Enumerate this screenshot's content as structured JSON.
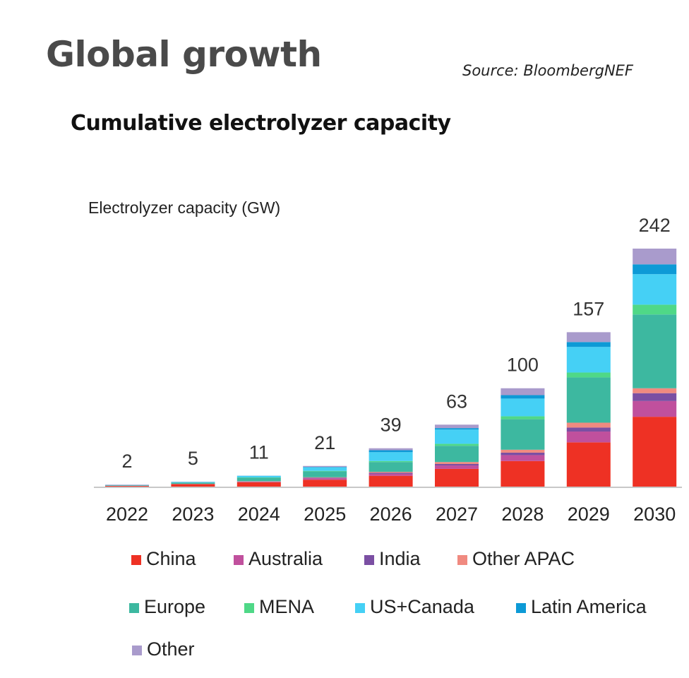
{
  "header": {
    "title": "Global growth",
    "source": "Source: BloombergNEF"
  },
  "chart_data": {
    "type": "bar",
    "stacked": true,
    "title": "Cumulative electrolyzer capacity",
    "ylabel": "Electrolyzer capacity (GW)",
    "xlabel": "",
    "ylim": [
      0,
      242
    ],
    "categories": [
      "2022",
      "2023",
      "2024",
      "2025",
      "2026",
      "2027",
      "2028",
      "2029",
      "2030"
    ],
    "totals": [
      2,
      5,
      11,
      21,
      39,
      63,
      100,
      157,
      242
    ],
    "total_labels": [
      "2",
      "5",
      "11",
      "21",
      "39",
      "63",
      "100",
      "157",
      "242"
    ],
    "series": [
      {
        "name": "China",
        "color": "#ee3124",
        "values": [
          0.8,
          2.5,
          4.5,
          7,
          11,
          18,
          26,
          45,
          71
        ]
      },
      {
        "name": "Australia",
        "color": "#c0509d",
        "values": [
          0,
          0.1,
          0.4,
          1.5,
          2,
          3.5,
          6,
          11,
          16
        ]
      },
      {
        "name": "India",
        "color": "#7b4fa3",
        "values": [
          0,
          0.1,
          0.3,
          0.5,
          1,
          1.5,
          2.5,
          4,
          8
        ]
      },
      {
        "name": "Other APAC",
        "color": "#f08a80",
        "values": [
          0,
          0.1,
          0.3,
          0.5,
          1,
          2,
          3,
          5,
          5
        ]
      },
      {
        "name": "Europe",
        "color": "#3db8a0",
        "values": [
          0.3,
          1.1,
          3.5,
          6,
          10,
          16.5,
          31,
          46,
          75
        ]
      },
      {
        "name": "MENA",
        "color": "#4fd887",
        "values": [
          0,
          0.1,
          0.3,
          0.5,
          1,
          2,
          3,
          5,
          10
        ]
      },
      {
        "name": "US+Canada",
        "color": "#45d0f5",
        "values": [
          0.3,
          0.6,
          1.5,
          3.5,
          9,
          14.5,
          18,
          26,
          31
        ]
      },
      {
        "name": "Latin America",
        "color": "#0d9ad6",
        "values": [
          0.2,
          0.2,
          0.2,
          0.5,
          2,
          1.5,
          3.5,
          5,
          10
        ]
      },
      {
        "name": "Other",
        "color": "#a99bcc",
        "values": [
          0.4,
          0.2,
          0,
          1,
          2,
          3.5,
          7,
          10,
          16
        ]
      }
    ]
  }
}
